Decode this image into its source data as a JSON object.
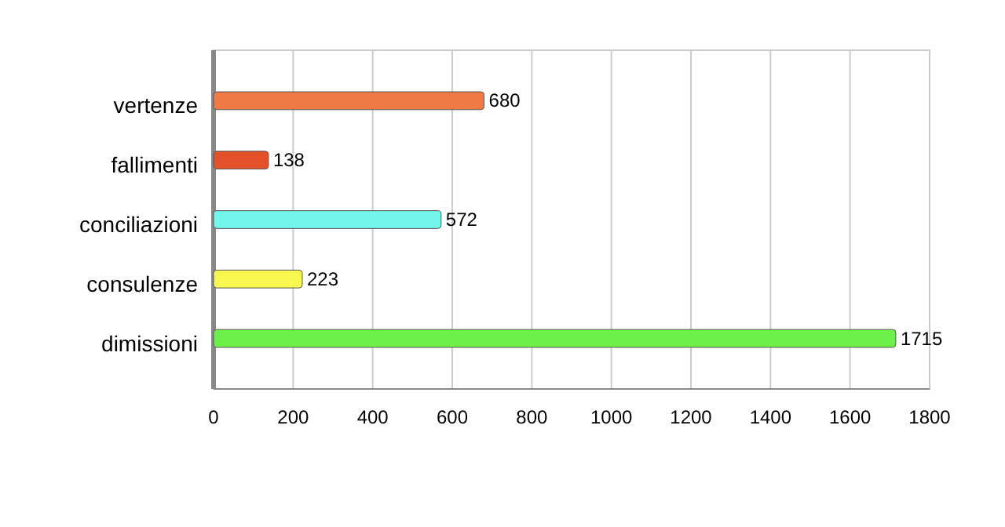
{
  "chart_data": {
    "type": "bar",
    "orientation": "horizontal",
    "categories": [
      "vertenze",
      "fallimenti",
      "conciliazioni",
      "consulenze",
      "dimissioni"
    ],
    "values": [
      680,
      138,
      572,
      223,
      1715
    ],
    "colors": [
      "#f07a45",
      "#e4502a",
      "#72f5ea",
      "#f8f850",
      "#6ef04a"
    ],
    "xlim": [
      0,
      1800
    ],
    "xticks": [
      0,
      200,
      400,
      600,
      800,
      1000,
      1200,
      1400,
      1600,
      1800
    ],
    "grid": "x",
    "data_labels": true
  }
}
